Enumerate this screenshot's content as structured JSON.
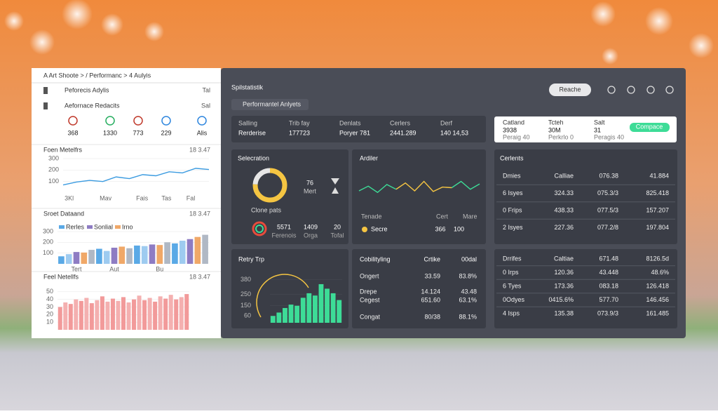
{
  "sidebar": {
    "breadcrumb": "A Art Shoote > / Performanc > 4 Aulyis",
    "nav": [
      {
        "label": "Peforecis Adylis",
        "tag": "Tal"
      },
      {
        "label": "Aefornace Redacits",
        "tag": "Sal"
      }
    ],
    "stats": [
      "368",
      "1330",
      "773",
      "229",
      "Alis"
    ],
    "charts": [
      {
        "type": "line",
        "title": "Foen Metelfrs",
        "note": "18 3.47",
        "color": "#3b9be0",
        "categories": [
          "3Kl",
          null,
          null,
          "Mav",
          null,
          null,
          "Fais",
          null,
          "Tas",
          null,
          "Fal",
          null
        ],
        "values": [
          70,
          95,
          110,
          100,
          140,
          125,
          160,
          150,
          185,
          175,
          215,
          205
        ],
        "ylim": [
          0,
          300
        ],
        "yticks": [
          100,
          200,
          300
        ]
      },
      {
        "type": "bar",
        "title": "Sroet Dataand",
        "note": "18 3.47",
        "legend": [
          {
            "name": "Rerles",
            "color": "#5aa9e6"
          },
          {
            "name": "Sonlial",
            "color": "#8e7cc3"
          },
          {
            "name": "Irno",
            "color": "#f0a868"
          }
        ],
        "colors": [
          "#5aa9e6",
          "#9ecbf0",
          "#8e7cc3",
          "#f0a868",
          "#b0b8c4"
        ],
        "categories": [
          null,
          null,
          "Tert",
          null,
          null,
          null,
          null,
          "Aut",
          null,
          null,
          null,
          null,
          null,
          "Bu",
          null,
          null,
          null,
          null,
          null,
          null
        ],
        "values": [
          70,
          90,
          110,
          105,
          130,
          140,
          120,
          150,
          160,
          145,
          170,
          165,
          180,
          175,
          200,
          190,
          215,
          230,
          250,
          270
        ],
        "ylim": [
          0,
          300
        ],
        "yticks": [
          100,
          200,
          300
        ]
      },
      {
        "type": "bar",
        "title": "Feel Netellfs",
        "note": "18 3.47",
        "colors": [
          "#f29a9a",
          "#f4b0b0"
        ],
        "categories": [],
        "values": [
          30,
          36,
          34,
          40,
          38,
          42,
          35,
          39,
          44,
          37,
          41,
          38,
          43,
          36,
          40,
          45,
          39,
          42,
          37,
          44,
          41,
          46,
          40,
          43,
          47
        ],
        "ylim": [
          0,
          60
        ],
        "yticks": [
          10,
          20,
          30,
          40,
          50
        ]
      }
    ]
  },
  "header": {
    "title": "Spilstatistik",
    "dropdown": "Performantel Anlyets",
    "button": "Reache"
  },
  "kpis": [
    {
      "label": "Salling",
      "value": "Rerderise"
    },
    {
      "label": "Trib fay",
      "value": "177723"
    },
    {
      "label": "Denlats",
      "value": "Poryer 781"
    },
    {
      "label": "Cerlers",
      "value": "2441.289"
    },
    {
      "label": "Derf",
      "value": "140 14,53"
    }
  ],
  "summary": {
    "items": [
      {
        "label": "Catland",
        "value": "3938",
        "sub": "Peraig 40"
      },
      {
        "label": "Tcteh",
        "value": "30M",
        "sub": "Perkrlo 0"
      },
      {
        "label": "Salt",
        "value": "31",
        "sub": "Peragis 40"
      }
    ],
    "button": "Compace"
  },
  "selection": {
    "title": "Selecration",
    "donut": {
      "type": "donut",
      "values": [
        76,
        24
      ],
      "colors": [
        "#f5c542",
        "#e6e6e6"
      ]
    },
    "unit": "Mert",
    "subtitle": "Clone pats",
    "stats": [
      {
        "value": "5571",
        "label": "Ferenois"
      },
      {
        "value": "1409",
        "label": "Orga"
      },
      {
        "value": "20",
        "label": "Tofal"
      }
    ]
  },
  "ardiler": {
    "title": "Ardiler",
    "chart": {
      "type": "line",
      "ylim": [
        0,
        100
      ],
      "series": [
        {
          "color": "#3ddc97",
          "values": [
            40,
            55,
            35,
            60,
            45,
            null,
            null,
            null,
            null,
            null,
            50,
            70,
            45,
            62
          ]
        },
        {
          "color": "#f5c542",
          "values": [
            null,
            null,
            null,
            null,
            45,
            65,
            40,
            70,
            38,
            52,
            50,
            null,
            null,
            null
          ]
        }
      ]
    },
    "labels": [
      "Tenade",
      "Cert",
      "Mare"
    ],
    "legend": "Secre",
    "value": 366,
    "target": 100
  },
  "clients": {
    "title": "Cerlents",
    "rows": [
      [
        "Dmies",
        "Calliae",
        "076.38",
        "41.884"
      ],
      [
        "6 Isyes",
        "324.33",
        "075.3/3",
        "825.418"
      ],
      [
        "0 Frips",
        "438.33",
        "077.5/3",
        "157.207"
      ],
      [
        "2 Isyes",
        "227.36",
        "077.2/8",
        "197.804"
      ]
    ]
  },
  "retry": {
    "title": "Retry Trp",
    "chart": {
      "type": "bar",
      "color": "#3ddc97",
      "values": [
        60,
        90,
        130,
        160,
        150,
        220,
        260,
        240,
        340,
        300,
        260,
        200
      ],
      "ylim": [
        0,
        420
      ],
      "yticks": [
        60,
        150,
        250,
        380
      ]
    }
  },
  "capability": {
    "title": "Cobilityling",
    "headers": [
      "Crtike",
      "00dal"
    ],
    "rows": [
      [
        "Ongert",
        "33.59",
        "83.8%"
      ],
      [
        "Drepe",
        "14.124",
        "43.48"
      ],
      [
        "Cegest",
        "651.60",
        "63.1%"
      ],
      [
        "Congat",
        "80/38",
        "88.1%"
      ]
    ]
  },
  "drivers": {
    "rows": [
      [
        "Drrifes",
        "Caltiae",
        "671.48",
        "8126.5d"
      ],
      [
        "0 Irps",
        "120.36",
        "43.448",
        "48.6%"
      ],
      [
        "6 Tyes",
        "173.36",
        "083.18",
        "126.418"
      ],
      [
        "0Odyes",
        "0415.6%",
        "577.70",
        "146.456"
      ],
      [
        "4 Isps",
        "135.38",
        "073.9/3",
        "161.485"
      ]
    ]
  }
}
